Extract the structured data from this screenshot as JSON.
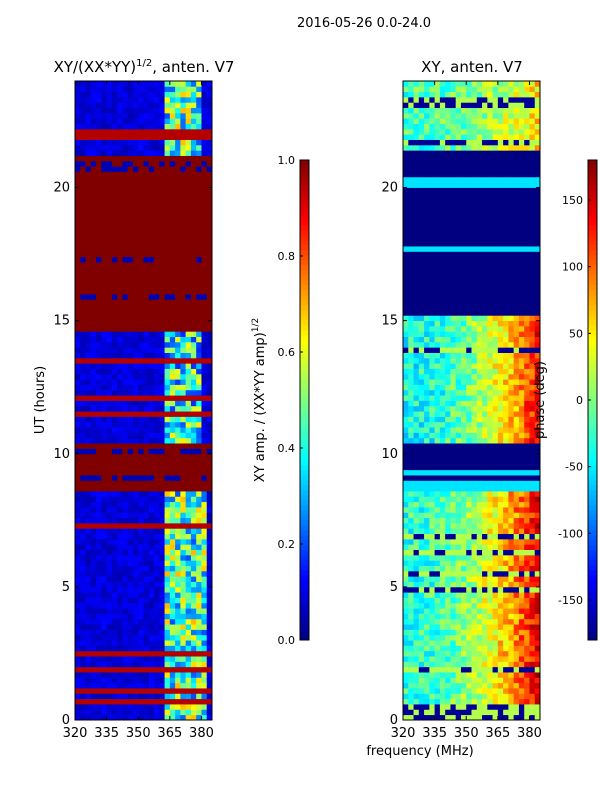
{
  "figure": {
    "title": "2016-05-26 0.0-24.0",
    "xlabel": "frequency (MHz)"
  },
  "chart_data": [
    {
      "type": "heatmap",
      "title_text": "XY/(XX*YY)",
      "title_sup": "1/2",
      "title_suffix": ", anten. V7",
      "xlabel": "",
      "ylabel": "UT (hours)",
      "xlim": [
        320,
        385
      ],
      "ylim": [
        0,
        24
      ],
      "xticks": [
        "320",
        "335",
        "350",
        "365",
        "380"
      ],
      "yticks": [
        "0",
        "5",
        "10",
        "15",
        "20"
      ],
      "colorbar": {
        "label_text": "XY amp. / (XX*YY amp)",
        "label_sup": "1/2",
        "range": [
          0.0,
          1.0
        ],
        "ticks": [
          "0.0",
          "0.2",
          "0.4",
          "0.6",
          "0.8",
          "1.0"
        ],
        "colormap": "jet"
      },
      "regions": [
        {
          "t0": 0.0,
          "t1": 8.6,
          "level": "low",
          "f_hi_band": [
            362,
            383
          ],
          "hi_value": 0.45
        },
        {
          "t0": 8.6,
          "t1": 10.4,
          "level": "saturated",
          "value": 1.0
        },
        {
          "t0": 10.4,
          "t1": 14.7,
          "level": "low",
          "f_hi_band": [
            362,
            380
          ],
          "hi_value": 0.4
        },
        {
          "t0": 14.7,
          "t1": 21.3,
          "level": "saturated",
          "value": 1.0
        },
        {
          "t0": 21.3,
          "t1": 24.0,
          "level": "low",
          "f_hi_band": [
            362,
            380
          ],
          "hi_value": 0.45
        }
      ]
    },
    {
      "type": "heatmap",
      "title_text": "XY, anten. V7",
      "xlabel": "frequency (MHz)",
      "ylabel": "",
      "xlim": [
        320,
        385
      ],
      "ylim": [
        0,
        24
      ],
      "xticks": [
        "320",
        "335",
        "350",
        "365",
        "380"
      ],
      "yticks": [
        "0",
        "5",
        "10",
        "15",
        "20"
      ],
      "colorbar": {
        "label_text": "phase (deg)",
        "range": [
          -180,
          180
        ],
        "ticks": [
          "-150",
          "-100",
          "-50",
          "0",
          "50",
          "100",
          "150"
        ],
        "colormap": "jet"
      },
      "regions": [
        {
          "t0": 0.0,
          "t1": 8.6,
          "level": "mid",
          "phase_low_f": -30,
          "phase_high_f": 150
        },
        {
          "t0": 8.6,
          "t1": 10.4,
          "level": "low",
          "value": -180
        },
        {
          "t0": 10.4,
          "t1": 15.2,
          "level": "mid",
          "phase_low_f": -40,
          "phase_high_f": 140
        },
        {
          "t0": 15.2,
          "t1": 21.5,
          "level": "low",
          "value": -180
        },
        {
          "t0": 21.5,
          "t1": 24.0,
          "level": "mid",
          "phase_low_f": -20,
          "phase_high_f": 60
        }
      ]
    }
  ]
}
